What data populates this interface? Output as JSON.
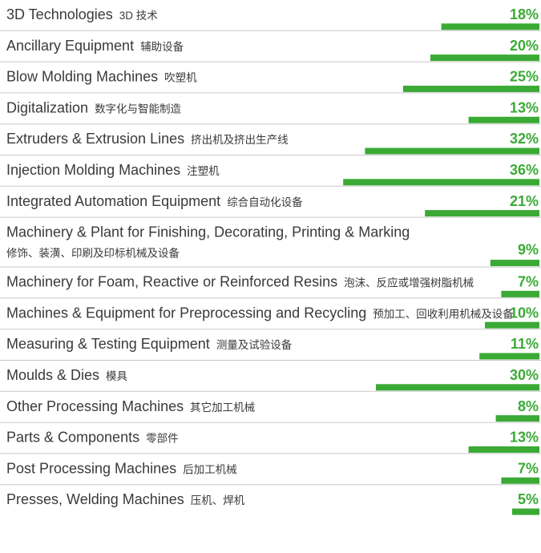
{
  "chart_data": {
    "type": "bar",
    "categories": [
      "3D Technologies",
      "Ancillary Equipment",
      "Blow Molding Machines",
      "Digitalization",
      "Extruders & Extrusion Lines",
      "Injection Molding Machines",
      "Integrated Automation Equipment",
      "Machinery & Plant for Finishing, Decorating, Printing & Marking",
      "Machinery for Foam, Reactive or Reinforced Resins",
      "Machines & Equipment for Preprocessing and Recycling",
      "Measuring & Testing Equipment",
      "Moulds & Dies",
      "Other Processing Machines",
      "Parts & Components",
      "Post Processing Machines",
      "Presses, Welding Machines"
    ],
    "categories_zh": [
      "3D 技术",
      "辅助设备",
      "吹塑机",
      "数字化与智能制造",
      "挤出机及挤出生产线",
      "注塑机",
      "综合自动化设备",
      "修饰、装潢、印刷及印标机械及设备",
      "泡沫、反应或增强树脂机械",
      "预加工、回收利用机械及设备",
      "测量及试验设备",
      "模具",
      "其它加工机械",
      "零部件",
      "后加工机械",
      "压机、焊机"
    ],
    "values": [
      18,
      20,
      25,
      13,
      32,
      36,
      21,
      9,
      7,
      10,
      11,
      30,
      8,
      13,
      7,
      5
    ],
    "value_labels": [
      "18%",
      "20%",
      "25%",
      "13%",
      "32%",
      "36%",
      "21%",
      "9%",
      "7%",
      "10%",
      "11%",
      "30%",
      "8%",
      "13%",
      "7%",
      "5%"
    ],
    "color": "#3aaa35"
  }
}
